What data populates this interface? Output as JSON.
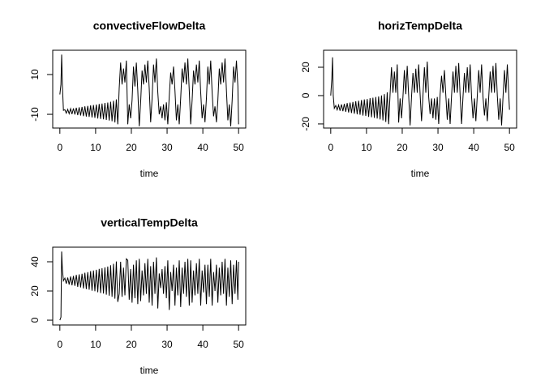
{
  "chart_data": [
    {
      "type": "line",
      "title": "convectiveFlowDelta",
      "xlabel": "time",
      "color": "#000000",
      "xlim": [
        -2,
        52
      ],
      "ylim": [
        -16.9,
        22.2
      ],
      "xticks": [
        0,
        10,
        20,
        30,
        40,
        50
      ],
      "yticks": [
        -10,
        10
      ],
      "x": [
        0,
        0.3,
        0.5,
        0.7,
        1,
        1.4,
        1.8,
        2.2,
        2.6,
        3,
        3.4,
        3.8,
        4.2,
        4.6,
        5,
        5.4,
        5.8,
        6.2,
        6.6,
        7,
        7.4,
        7.8,
        8.2,
        8.6,
        9,
        9.4,
        9.8,
        10.2,
        10.6,
        11,
        11.4,
        11.8,
        12.2,
        12.6,
        13,
        13.4,
        13.8,
        14.2,
        14.6,
        15,
        15.4,
        15.8,
        16.2,
        16.6,
        17,
        17.4,
        17.8,
        18.2,
        18.6,
        19,
        19.4,
        19.8,
        20.2,
        20.6,
        21,
        21.4,
        21.8,
        22.2,
        22.6,
        23,
        23.4,
        23.8,
        24.2,
        24.6,
        25,
        25.4,
        25.8,
        26.2,
        26.6,
        27,
        27.4,
        27.8,
        28.2,
        28.6,
        29,
        29.4,
        29.8,
        30.2,
        30.6,
        31,
        31.4,
        31.8,
        32.2,
        32.6,
        33,
        33.4,
        33.8,
        34.2,
        34.6,
        35,
        35.4,
        35.8,
        36.2,
        36.6,
        37,
        37.4,
        37.8,
        38.2,
        38.6,
        39,
        39.4,
        39.8,
        40.2,
        40.6,
        41,
        41.4,
        41.8,
        42.2,
        42.6,
        43,
        43.4,
        43.8,
        44.2,
        44.6,
        45,
        45.4,
        45.8,
        46.2,
        46.6,
        47,
        47.4,
        47.8,
        48.2,
        48.6,
        49,
        49.4,
        49.8,
        50
      ],
      "values": [
        0,
        5,
        20,
        5,
        -8,
        -7.7,
        -9.4,
        -7.5,
        -9.7,
        -7.2,
        -9.9,
        -7,
        -10.1,
        -6.7,
        -10.4,
        -6.5,
        -10.6,
        -6.3,
        -10.9,
        -6,
        -11.1,
        -5.8,
        -11.3,
        -5.5,
        -11.6,
        -5.3,
        -11.8,
        -5.1,
        -12.1,
        -4.8,
        -12.3,
        -4.6,
        -12.5,
        -4.3,
        -12.8,
        -4.1,
        -13.1,
        -3.7,
        -13.5,
        -3.2,
        -14.1,
        -2.5,
        -15,
        3,
        16,
        5,
        13,
        6,
        17,
        -15,
        -5,
        -12,
        -3,
        14,
        4,
        16,
        2,
        -16,
        -4,
        12,
        5,
        15,
        6,
        17,
        3,
        -14,
        -2,
        15,
        6,
        18,
        1,
        -10,
        -6,
        -12,
        -5,
        -13,
        -4,
        -15,
        -1,
        11,
        5,
        14,
        2,
        -13,
        -5,
        -15,
        -2,
        13,
        6,
        16,
        5,
        18,
        2,
        -15,
        -3,
        12,
        5,
        15,
        6,
        17,
        1,
        -12,
        -5,
        -14,
        -2,
        14,
        5,
        17,
        1,
        -11,
        -6,
        -14,
        -3,
        13,
        5,
        16,
        6,
        18,
        2,
        -13,
        -5,
        -16,
        -3,
        14,
        6,
        17,
        4,
        -15
      ]
    },
    {
      "type": "line",
      "title": "horizTempDelta",
      "xlabel": "time",
      "color": "#000000",
      "xlim": [
        -2,
        52
      ],
      "ylim": [
        -22.9,
        32
      ],
      "xticks": [
        0,
        10,
        20,
        30,
        40,
        50
      ],
      "yticks": [
        -20,
        0,
        20
      ],
      "x": [
        0,
        0.3,
        0.5,
        0.7,
        1,
        1.4,
        1.8,
        2.2,
        2.6,
        3,
        3.4,
        3.8,
        4.2,
        4.6,
        5,
        5.4,
        5.8,
        6.2,
        6.6,
        7,
        7.4,
        7.8,
        8.2,
        8.6,
        9,
        9.4,
        9.8,
        10.2,
        10.6,
        11,
        11.4,
        11.8,
        12.2,
        12.6,
        13,
        13.4,
        13.8,
        14.2,
        14.6,
        15,
        15.4,
        15.8,
        16.2,
        16.6,
        17,
        17.4,
        17.8,
        18.2,
        18.6,
        19,
        19.4,
        19.8,
        20.2,
        20.6,
        21,
        21.4,
        21.8,
        22.2,
        22.6,
        23,
        23.4,
        23.8,
        24.2,
        24.6,
        25,
        25.4,
        25.8,
        26.2,
        26.6,
        27,
        27.4,
        27.8,
        28.2,
        28.6,
        29,
        29.4,
        29.8,
        30.2,
        30.6,
        31,
        31.4,
        31.8,
        32.2,
        32.6,
        33,
        33.4,
        33.8,
        34.2,
        34.6,
        35,
        35.4,
        35.8,
        36.2,
        36.6,
        37,
        37.4,
        37.8,
        38.2,
        38.6,
        39,
        39.4,
        39.8,
        40.2,
        40.6,
        41,
        41.4,
        41.8,
        42.2,
        42.6,
        43,
        43.4,
        43.8,
        44.2,
        44.6,
        45,
        45.4,
        45.8,
        46.2,
        46.6,
        47,
        47.4,
        47.8,
        48.2,
        48.6,
        49,
        49.4,
        49.8,
        50
      ],
      "values": [
        0,
        12,
        27,
        0,
        -9,
        -7,
        -10.1,
        -6.7,
        -10.7,
        -6.2,
        -11,
        -5.8,
        -11.4,
        -5.3,
        -11.9,
        -4.9,
        -12.3,
        -4.5,
        -12.8,
        -4,
        -13.2,
        -3.6,
        -13.5,
        -3.1,
        -14.1,
        -2.7,
        -14.4,
        -2.4,
        -15,
        -1.8,
        -15.3,
        -1.5,
        -15.7,
        -1,
        -16.2,
        -0.6,
        -16.8,
        0.1,
        -17.5,
        1,
        -18.6,
        2.3,
        -20.2,
        1,
        20,
        2,
        17,
        2,
        22,
        -19,
        -2,
        -16,
        -1,
        18,
        1,
        21,
        0,
        -21,
        -1,
        16,
        2,
        19,
        2,
        22,
        1,
        -18,
        0,
        20,
        2,
        24,
        -1,
        -13,
        -2,
        -16,
        -2,
        -17,
        -1,
        -20,
        1,
        14,
        2,
        18,
        0,
        -17,
        -2,
        -20,
        0,
        17,
        2,
        21,
        2,
        23,
        0,
        -20,
        -1,
        16,
        2,
        20,
        2,
        22,
        -1,
        -16,
        -2,
        -18,
        0,
        18,
        2,
        22,
        -1,
        -14,
        -2,
        -18,
        -1,
        17,
        2,
        21,
        2,
        23,
        0,
        -17,
        -2,
        -21,
        -1,
        18,
        2,
        22,
        1,
        -10
      ]
    },
    {
      "type": "line",
      "title": "verticalTempDelta",
      "xlabel": "time",
      "color": "#000000",
      "xlim": [
        -2,
        52
      ],
      "ylim": [
        -3.3,
        50
      ],
      "xticks": [
        0,
        10,
        20,
        30,
        40,
        50
      ],
      "yticks": [
        0,
        20,
        40
      ],
      "x": [
        0,
        0.3,
        0.5,
        0.7,
        1,
        1.4,
        1.8,
        2.2,
        2.6,
        3,
        3.4,
        3.8,
        4.2,
        4.6,
        5,
        5.4,
        5.8,
        6.2,
        6.6,
        7,
        7.4,
        7.8,
        8.2,
        8.6,
        9,
        9.4,
        9.8,
        10.2,
        10.6,
        11,
        11.4,
        11.8,
        12.2,
        12.6,
        13,
        13.4,
        13.8,
        14.2,
        14.6,
        15,
        15.4,
        15.8,
        16.2,
        16.6,
        17,
        17.4,
        17.8,
        18.2,
        18.6,
        19,
        19.4,
        19.8,
        20.2,
        20.6,
        21,
        21.4,
        21.8,
        22.2,
        22.6,
        23,
        23.4,
        23.8,
        24.2,
        24.6,
        25,
        25.4,
        25.8,
        26.2,
        26.6,
        27,
        27.4,
        27.8,
        28.2,
        28.6,
        29,
        29.4,
        29.8,
        30.2,
        30.6,
        31,
        31.4,
        31.8,
        32.2,
        32.6,
        33,
        33.4,
        33.8,
        34.2,
        34.6,
        35,
        35.4,
        35.8,
        36.2,
        36.6,
        37,
        37.4,
        37.8,
        38.2,
        38.6,
        39,
        39.4,
        39.8,
        40.2,
        40.6,
        41,
        41.4,
        41.8,
        42.2,
        42.6,
        43,
        43.4,
        43.8,
        44.2,
        44.6,
        45,
        45.4,
        45.8,
        46.2,
        46.6,
        47,
        47.4,
        47.8,
        48.2,
        48.6,
        49,
        49.4,
        49.8,
        50
      ],
      "values": [
        0,
        2,
        47,
        35,
        27,
        28.8,
        25,
        29.2,
        24.4,
        29.9,
        23.9,
        30.3,
        23.5,
        31,
        22.8,
        31.4,
        22.4,
        31.8,
        21.7,
        32.5,
        21.3,
        32.9,
        20.9,
        33.6,
        20.2,
        34,
        19.8,
        34.5,
        19.1,
        35.1,
        18.6,
        35.6,
        18.2,
        36.2,
        17.5,
        36.7,
        16.8,
        37.6,
        16,
        38.6,
        14.7,
        40.2,
        12.5,
        18,
        40,
        16,
        36,
        17,
        42,
        41,
        14,
        35,
        12,
        38,
        15,
        41,
        11,
        42,
        13,
        34,
        17,
        39,
        18,
        42,
        12,
        37,
        10,
        40,
        18,
        43,
        8,
        32,
        22,
        35,
        18,
        37,
        15,
        41,
        7,
        33,
        20,
        38,
        10,
        36,
        17,
        41,
        9,
        36,
        18,
        40,
        16,
        42,
        10,
        41,
        12,
        34,
        17,
        39,
        18,
        42,
        10,
        34,
        19,
        38,
        11,
        38,
        16,
        42,
        10,
        33,
        20,
        38,
        12,
        36,
        17,
        40,
        18,
        42,
        10,
        36,
        16,
        41,
        11,
        38,
        18,
        41,
        14,
        40
      ]
    }
  ]
}
